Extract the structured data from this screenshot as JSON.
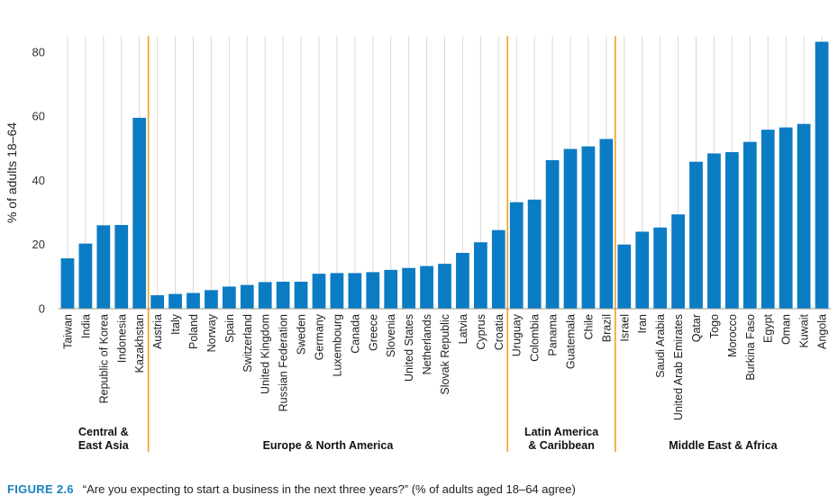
{
  "chart_data": {
    "type": "bar",
    "ylabel": "% of adults 18–64",
    "ylim": [
      0,
      85
    ],
    "yticks": [
      0,
      20,
      40,
      60,
      80
    ],
    "grid": "vertical lines per category",
    "bar_color": "#0b7cc4",
    "separator_color": "#f0a020",
    "grid_color": "#d9d9d9",
    "groups": [
      {
        "label_lines": [
          "Central &",
          "East Asia"
        ],
        "categories": [
          "Taiwan",
          "India",
          "Republic of Korea",
          "Indonesia",
          "Kazakhstan"
        ],
        "values": [
          15.7,
          20.3,
          26.0,
          26.1,
          59.5
        ]
      },
      {
        "label_lines": [
          "Europe & North America"
        ],
        "categories": [
          "Austria",
          "Italy",
          "Poland",
          "Norway",
          "Spain",
          "Switzerland",
          "United Kingdom",
          "Russian Federation",
          "Sweden",
          "Germany",
          "Luxembourg",
          "Canada",
          "Greece",
          "Slovenia",
          "United States",
          "Netherlands",
          "Slovak Republic",
          "Latvia",
          "Cyprus",
          "Croatia"
        ],
        "values": [
          4.2,
          4.6,
          4.9,
          5.8,
          6.9,
          7.4,
          8.3,
          8.4,
          8.4,
          10.9,
          11.1,
          11.1,
          11.4,
          12.1,
          12.7,
          13.3,
          14.0,
          17.4,
          20.7,
          24.5
        ]
      },
      {
        "label_lines": [
          "Latin America",
          "& Caribbean"
        ],
        "categories": [
          "Uruguay",
          "Colombia",
          "Panama",
          "Guatemala",
          "Chile",
          "Brazil"
        ],
        "values": [
          33.2,
          34.0,
          46.3,
          49.8,
          50.6,
          52.9
        ]
      },
      {
        "label_lines": [
          "Middle East & Africa"
        ],
        "categories": [
          "Israel",
          "Iran",
          "Saudi Arabia",
          "United Arab Emirates",
          "Qatar",
          "Togo",
          "Morocco",
          "Burkina Faso",
          "Egypt",
          "Oman",
          "Kuwait",
          "Angola"
        ],
        "values": [
          20.0,
          24.0,
          25.3,
          29.4,
          45.8,
          48.4,
          48.8,
          52.0,
          55.8,
          56.5,
          57.6,
          83.2
        ]
      }
    ]
  },
  "caption": {
    "figure": "FIGURE 2.6",
    "text": "“Are you expecting to start a business in the next three years?” (% of adults aged 18–64 agree)"
  }
}
